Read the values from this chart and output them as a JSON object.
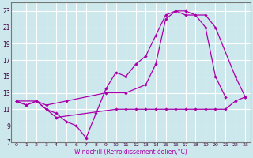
{
  "xlabel": "Windchill (Refroidissement éolien,°C)",
  "xlim": [
    -0.5,
    23.5
  ],
  "ylim": [
    7,
    24
  ],
  "xticks": [
    0,
    1,
    2,
    3,
    4,
    5,
    6,
    7,
    8,
    9,
    10,
    11,
    12,
    13,
    14,
    15,
    16,
    17,
    18,
    19,
    20,
    21,
    22,
    23
  ],
  "yticks": [
    7,
    9,
    11,
    13,
    15,
    17,
    19,
    21,
    23
  ],
  "background_color": "#cce8ec",
  "grid_color": "#ffffff",
  "line_color": "#aa00aa",
  "line1_x": [
    0,
    1,
    2,
    3,
    4,
    5,
    6,
    7,
    8,
    9,
    10,
    11,
    12,
    13,
    14,
    15,
    16,
    17,
    18,
    19,
    20,
    21
  ],
  "line1_y": [
    12,
    11.5,
    12,
    11,
    10.5,
    9.5,
    9,
    7.5,
    10.5,
    13.5,
    15.5,
    15,
    16.5,
    17.5,
    20,
    22.5,
    23,
    23,
    22.5,
    21,
    15,
    12.5
  ],
  "line2_x": [
    0,
    1,
    2,
    3,
    4,
    10,
    11,
    12,
    13,
    14,
    15,
    16,
    17,
    18,
    19,
    20,
    21,
    22,
    23
  ],
  "line2_y": [
    12,
    11.5,
    12,
    11,
    10,
    11,
    11,
    11,
    11,
    11,
    11,
    11,
    11,
    11,
    11,
    11,
    11,
    12,
    12.5
  ],
  "line3_x": [
    0,
    2,
    3,
    5,
    9,
    11,
    13,
    14,
    15,
    16,
    17,
    19,
    20,
    22,
    23
  ],
  "line3_y": [
    12,
    12,
    11.5,
    12,
    13,
    13,
    14,
    16.5,
    22,
    23,
    22.5,
    22.5,
    21,
    15,
    12.5
  ]
}
